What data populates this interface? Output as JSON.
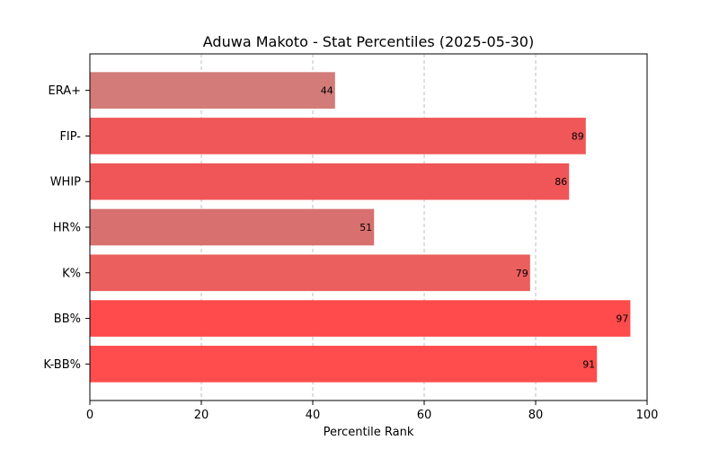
{
  "chart_data": {
    "type": "bar",
    "orientation": "horizontal",
    "title": "Aduwa Makoto - Stat Percentiles (2025-05-30)",
    "xlabel": "Percentile Rank",
    "ylabel": "",
    "xlim": [
      0,
      100
    ],
    "xticks": [
      0,
      20,
      40,
      60,
      80,
      100
    ],
    "grid": "x-dashed",
    "categories": [
      "ERA+",
      "FIP-",
      "WHIP",
      "HR%",
      "K%",
      "BB%",
      "K-BB%"
    ],
    "values": [
      44,
      89,
      86,
      51,
      79,
      97,
      91
    ],
    "colors": [
      "#d27b78",
      "#f05758",
      "#f05658",
      "#d8706f",
      "#eb5f5e",
      "#ff4b4b",
      "#ff4c4c"
    ]
  }
}
